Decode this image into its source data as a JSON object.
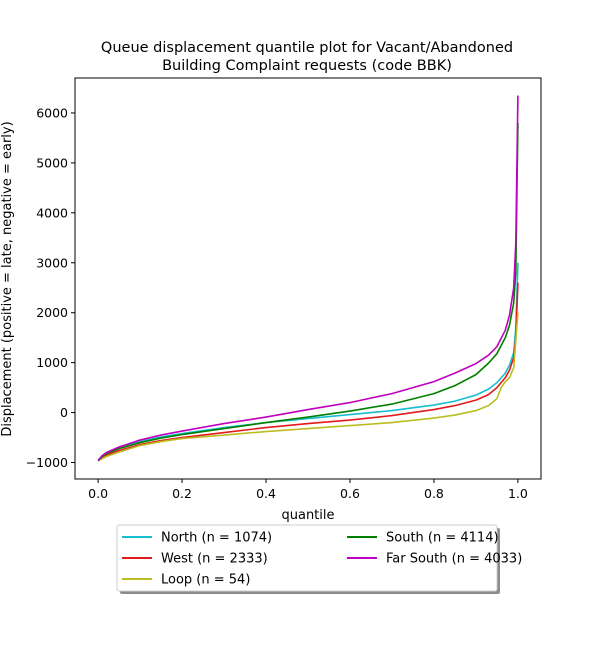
{
  "chart_data": {
    "type": "line",
    "title_line1": "Queue displacement quantile plot for Vacant/Abandoned",
    "title_line2": "Building Complaint  requests (code BBK)",
    "xlabel": "quantile",
    "ylabel": "Displacement (positive = late, negative = early)",
    "xlim": [
      -0.055,
      1.055
    ],
    "ylim": [
      -1330,
      6700
    ],
    "x_ticks": [
      0.0,
      0.2,
      0.4,
      0.6,
      0.8,
      1.0
    ],
    "x_tick_labels": [
      "0.0",
      "0.2",
      "0.4",
      "0.6",
      "0.8",
      "1.0"
    ],
    "y_ticks": [
      -1000,
      0,
      1000,
      2000,
      3000,
      4000,
      5000,
      6000
    ],
    "y_tick_labels": [
      "−1000",
      "0",
      "1000",
      "2000",
      "3000",
      "4000",
      "5000",
      "6000"
    ],
    "grid": false,
    "legend_placement": "below",
    "series": [
      {
        "name": "North (n = 1074)",
        "color": "#17becf",
        "x": [
          0.0009,
          0.005,
          0.01,
          0.02,
          0.05,
          0.1,
          0.15,
          0.2,
          0.3,
          0.4,
          0.5,
          0.6,
          0.7,
          0.8,
          0.85,
          0.9,
          0.93,
          0.95,
          0.97,
          0.98,
          0.99,
          0.995,
          1.0
        ],
        "y": [
          -950,
          -920,
          -880,
          -830,
          -720,
          -580,
          -490,
          -420,
          -300,
          -200,
          -120,
          -40,
          40,
          150,
          230,
          350,
          470,
          600,
          790,
          950,
          1200,
          1700,
          3000
        ]
      },
      {
        "name": "West (n = 2333)",
        "color": "#e31a1c",
        "x": [
          0.0004,
          0.005,
          0.01,
          0.02,
          0.05,
          0.1,
          0.15,
          0.2,
          0.3,
          0.4,
          0.5,
          0.6,
          0.7,
          0.8,
          0.85,
          0.9,
          0.93,
          0.95,
          0.97,
          0.98,
          0.99,
          0.995,
          1.0
        ],
        "y": [
          -960,
          -930,
          -890,
          -850,
          -760,
          -640,
          -560,
          -500,
          -400,
          -300,
          -220,
          -150,
          -60,
          60,
          140,
          250,
          360,
          500,
          700,
          850,
          1100,
          1500,
          2600
        ]
      },
      {
        "name": "Loop (n = 54)",
        "color": "#bcbd22",
        "x": [
          0.005,
          0.01,
          0.02,
          0.05,
          0.1,
          0.15,
          0.2,
          0.3,
          0.4,
          0.5,
          0.6,
          0.7,
          0.8,
          0.85,
          0.9,
          0.93,
          0.95,
          0.96,
          0.97,
          0.98,
          0.99,
          1.0
        ],
        "y": [
          -950,
          -920,
          -880,
          -790,
          -660,
          -580,
          -520,
          -450,
          -380,
          -320,
          -260,
          -200,
          -110,
          -50,
          40,
          140,
          280,
          500,
          620,
          700,
          900,
          2000
        ]
      },
      {
        "name": "South (n = 4114)",
        "color": "#008000",
        "x": [
          0.0002,
          0.005,
          0.01,
          0.02,
          0.05,
          0.1,
          0.15,
          0.2,
          0.3,
          0.4,
          0.5,
          0.6,
          0.7,
          0.8,
          0.85,
          0.9,
          0.93,
          0.95,
          0.97,
          0.98,
          0.99,
          0.995,
          1.0
        ],
        "y": [
          -970,
          -920,
          -880,
          -820,
          -720,
          -600,
          -510,
          -440,
          -320,
          -200,
          -90,
          30,
          170,
          380,
          540,
          760,
          990,
          1180,
          1500,
          1750,
          2200,
          2800,
          5800
        ]
      },
      {
        "name": "Far South (n = 4033)",
        "color": "#bf00bf",
        "x": [
          0.0002,
          0.005,
          0.01,
          0.02,
          0.05,
          0.1,
          0.15,
          0.2,
          0.3,
          0.4,
          0.5,
          0.6,
          0.7,
          0.8,
          0.85,
          0.9,
          0.93,
          0.95,
          0.97,
          0.98,
          0.99,
          0.995,
          1.0
        ],
        "y": [
          -960,
          -910,
          -860,
          -800,
          -690,
          -550,
          -450,
          -370,
          -220,
          -90,
          60,
          200,
          380,
          620,
          790,
          980,
          1150,
          1320,
          1650,
          1950,
          2500,
          3400,
          6350
        ]
      }
    ]
  }
}
